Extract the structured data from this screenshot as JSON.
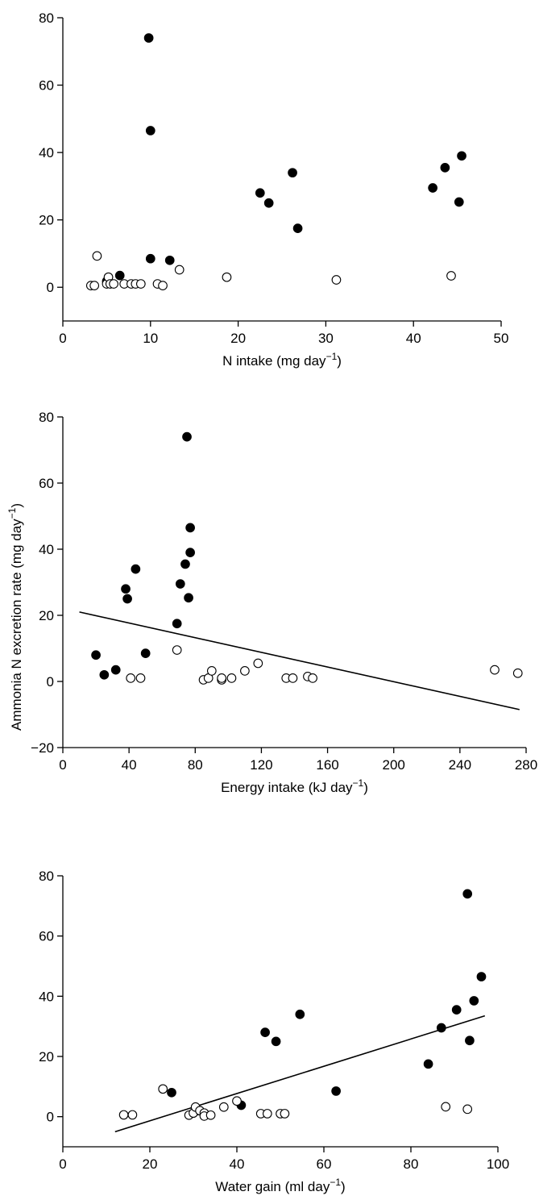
{
  "figure": {
    "shared_ylabel": "Ammonia N excretion rate (mg day",
    "shared_ylabel_sup": "−1",
    "shared_ylabel_end": ")"
  },
  "chart_data": [
    {
      "type": "scatter",
      "xlabel": "N intake (mg day",
      "xlabel_sup": "−1",
      "xlabel_end": ")",
      "xlim": [
        0,
        50
      ],
      "ylim": [
        -10,
        80
      ],
      "xticks": [
        0,
        10,
        20,
        30,
        40,
        50
      ],
      "yticks": [
        0,
        20,
        40,
        60,
        80
      ],
      "series": [
        {
          "marker": "filled",
          "points": [
            [
              9.8,
              74
            ],
            [
              10,
              46.5
            ],
            [
              10,
              8.5
            ],
            [
              12.2,
              8
            ],
            [
              6.5,
              3.5
            ],
            [
              5,
              1.8
            ],
            [
              22.5,
              28
            ],
            [
              23.5,
              25
            ],
            [
              26.2,
              34
            ],
            [
              26.8,
              17.5
            ],
            [
              42.2,
              29.5
            ],
            [
              43.6,
              35.5
            ],
            [
              45.2,
              25.3
            ],
            [
              45.5,
              39
            ]
          ]
        },
        {
          "marker": "open",
          "points": [
            [
              3.2,
              0.5
            ],
            [
              3.6,
              0.5
            ],
            [
              3.9,
              9.3
            ],
            [
              5,
              1
            ],
            [
              5.2,
              3
            ],
            [
              5.4,
              1
            ],
            [
              5.8,
              1
            ],
            [
              7,
              1
            ],
            [
              7.8,
              1
            ],
            [
              8.3,
              1
            ],
            [
              8.9,
              1
            ],
            [
              10.8,
              1
            ],
            [
              11.4,
              0.5
            ],
            [
              13.3,
              5.2
            ],
            [
              18.7,
              3
            ],
            [
              31.2,
              2.2
            ],
            [
              44.3,
              3.4
            ]
          ]
        }
      ]
    },
    {
      "type": "scatter",
      "xlabel": "Energy intake (kJ day",
      "xlabel_sup": "−1",
      "xlabel_end": ")",
      "xlim": [
        0,
        280
      ],
      "ylim": [
        -20,
        80
      ],
      "xticks": [
        0,
        40,
        80,
        120,
        160,
        200,
        240,
        280
      ],
      "yticks": [
        -20,
        0,
        20,
        40,
        60,
        80
      ],
      "ytick_labels": [
        "−20",
        "0",
        "20",
        "40",
        "60",
        "80"
      ],
      "trend_line": [
        [
          10,
          21
        ],
        [
          276,
          -8.5
        ]
      ],
      "series": [
        {
          "marker": "filled",
          "points": [
            [
              20,
              8
            ],
            [
              25,
              2
            ],
            [
              32,
              3.5
            ],
            [
              38,
              28
            ],
            [
              39,
              25
            ],
            [
              44,
              34
            ],
            [
              50,
              8.5
            ],
            [
              69,
              17.5
            ],
            [
              71,
              29.5
            ],
            [
              74,
              35.5
            ],
            [
              75,
              74
            ],
            [
              76,
              25.3
            ],
            [
              77,
              39
            ],
            [
              77,
              46.5
            ]
          ]
        },
        {
          "marker": "open",
          "points": [
            [
              41,
              1
            ],
            [
              47,
              1
            ],
            [
              69,
              9.5
            ],
            [
              85,
              0.5
            ],
            [
              88,
              1
            ],
            [
              90,
              3.2
            ],
            [
              96,
              0.5
            ],
            [
              96,
              1
            ],
            [
              102,
              1
            ],
            [
              110,
              3.2
            ],
            [
              118,
              5.5
            ],
            [
              135,
              1
            ],
            [
              139,
              1
            ],
            [
              148,
              1.5
            ],
            [
              151,
              1
            ],
            [
              261,
              3.5
            ],
            [
              275,
              2.5
            ]
          ]
        }
      ]
    },
    {
      "type": "scatter",
      "xlabel": "Water gain (ml day",
      "xlabel_sup": "−1",
      "xlabel_end": ")",
      "xlim": [
        0,
        100
      ],
      "ylim": [
        -10,
        80
      ],
      "xticks": [
        0,
        20,
        40,
        60,
        80,
        100
      ],
      "yticks": [
        0,
        20,
        40,
        60,
        80
      ],
      "trend_line": [
        [
          12,
          -5
        ],
        [
          97,
          33.5
        ]
      ],
      "series": [
        {
          "marker": "filled",
          "points": [
            [
              25,
              8
            ],
            [
              31,
              2
            ],
            [
              41,
              3.8
            ],
            [
              46.5,
              28
            ],
            [
              49,
              25
            ],
            [
              54.5,
              34
            ],
            [
              62.8,
              8.5
            ],
            [
              84,
              17.5
            ],
            [
              87,
              29.5
            ],
            [
              90.5,
              35.5
            ],
            [
              93,
              74
            ],
            [
              93.5,
              25.3
            ],
            [
              94.5,
              38.5
            ],
            [
              96.2,
              46.5
            ]
          ]
        },
        {
          "marker": "open",
          "points": [
            [
              14,
              0.6
            ],
            [
              16,
              0.6
            ],
            [
              23,
              9.2
            ],
            [
              29,
              0.5
            ],
            [
              30,
              1.2
            ],
            [
              30.5,
              3.2
            ],
            [
              31.5,
              2
            ],
            [
              32.5,
              1.2
            ],
            [
              32.5,
              0.2
            ],
            [
              34,
              0.5
            ],
            [
              37,
              3.2
            ],
            [
              40,
              5.2
            ],
            [
              45.5,
              1
            ],
            [
              47,
              1
            ],
            [
              50,
              1
            ],
            [
              51,
              1
            ],
            [
              88,
              3.3
            ],
            [
              93,
              2.5
            ]
          ]
        }
      ]
    }
  ]
}
